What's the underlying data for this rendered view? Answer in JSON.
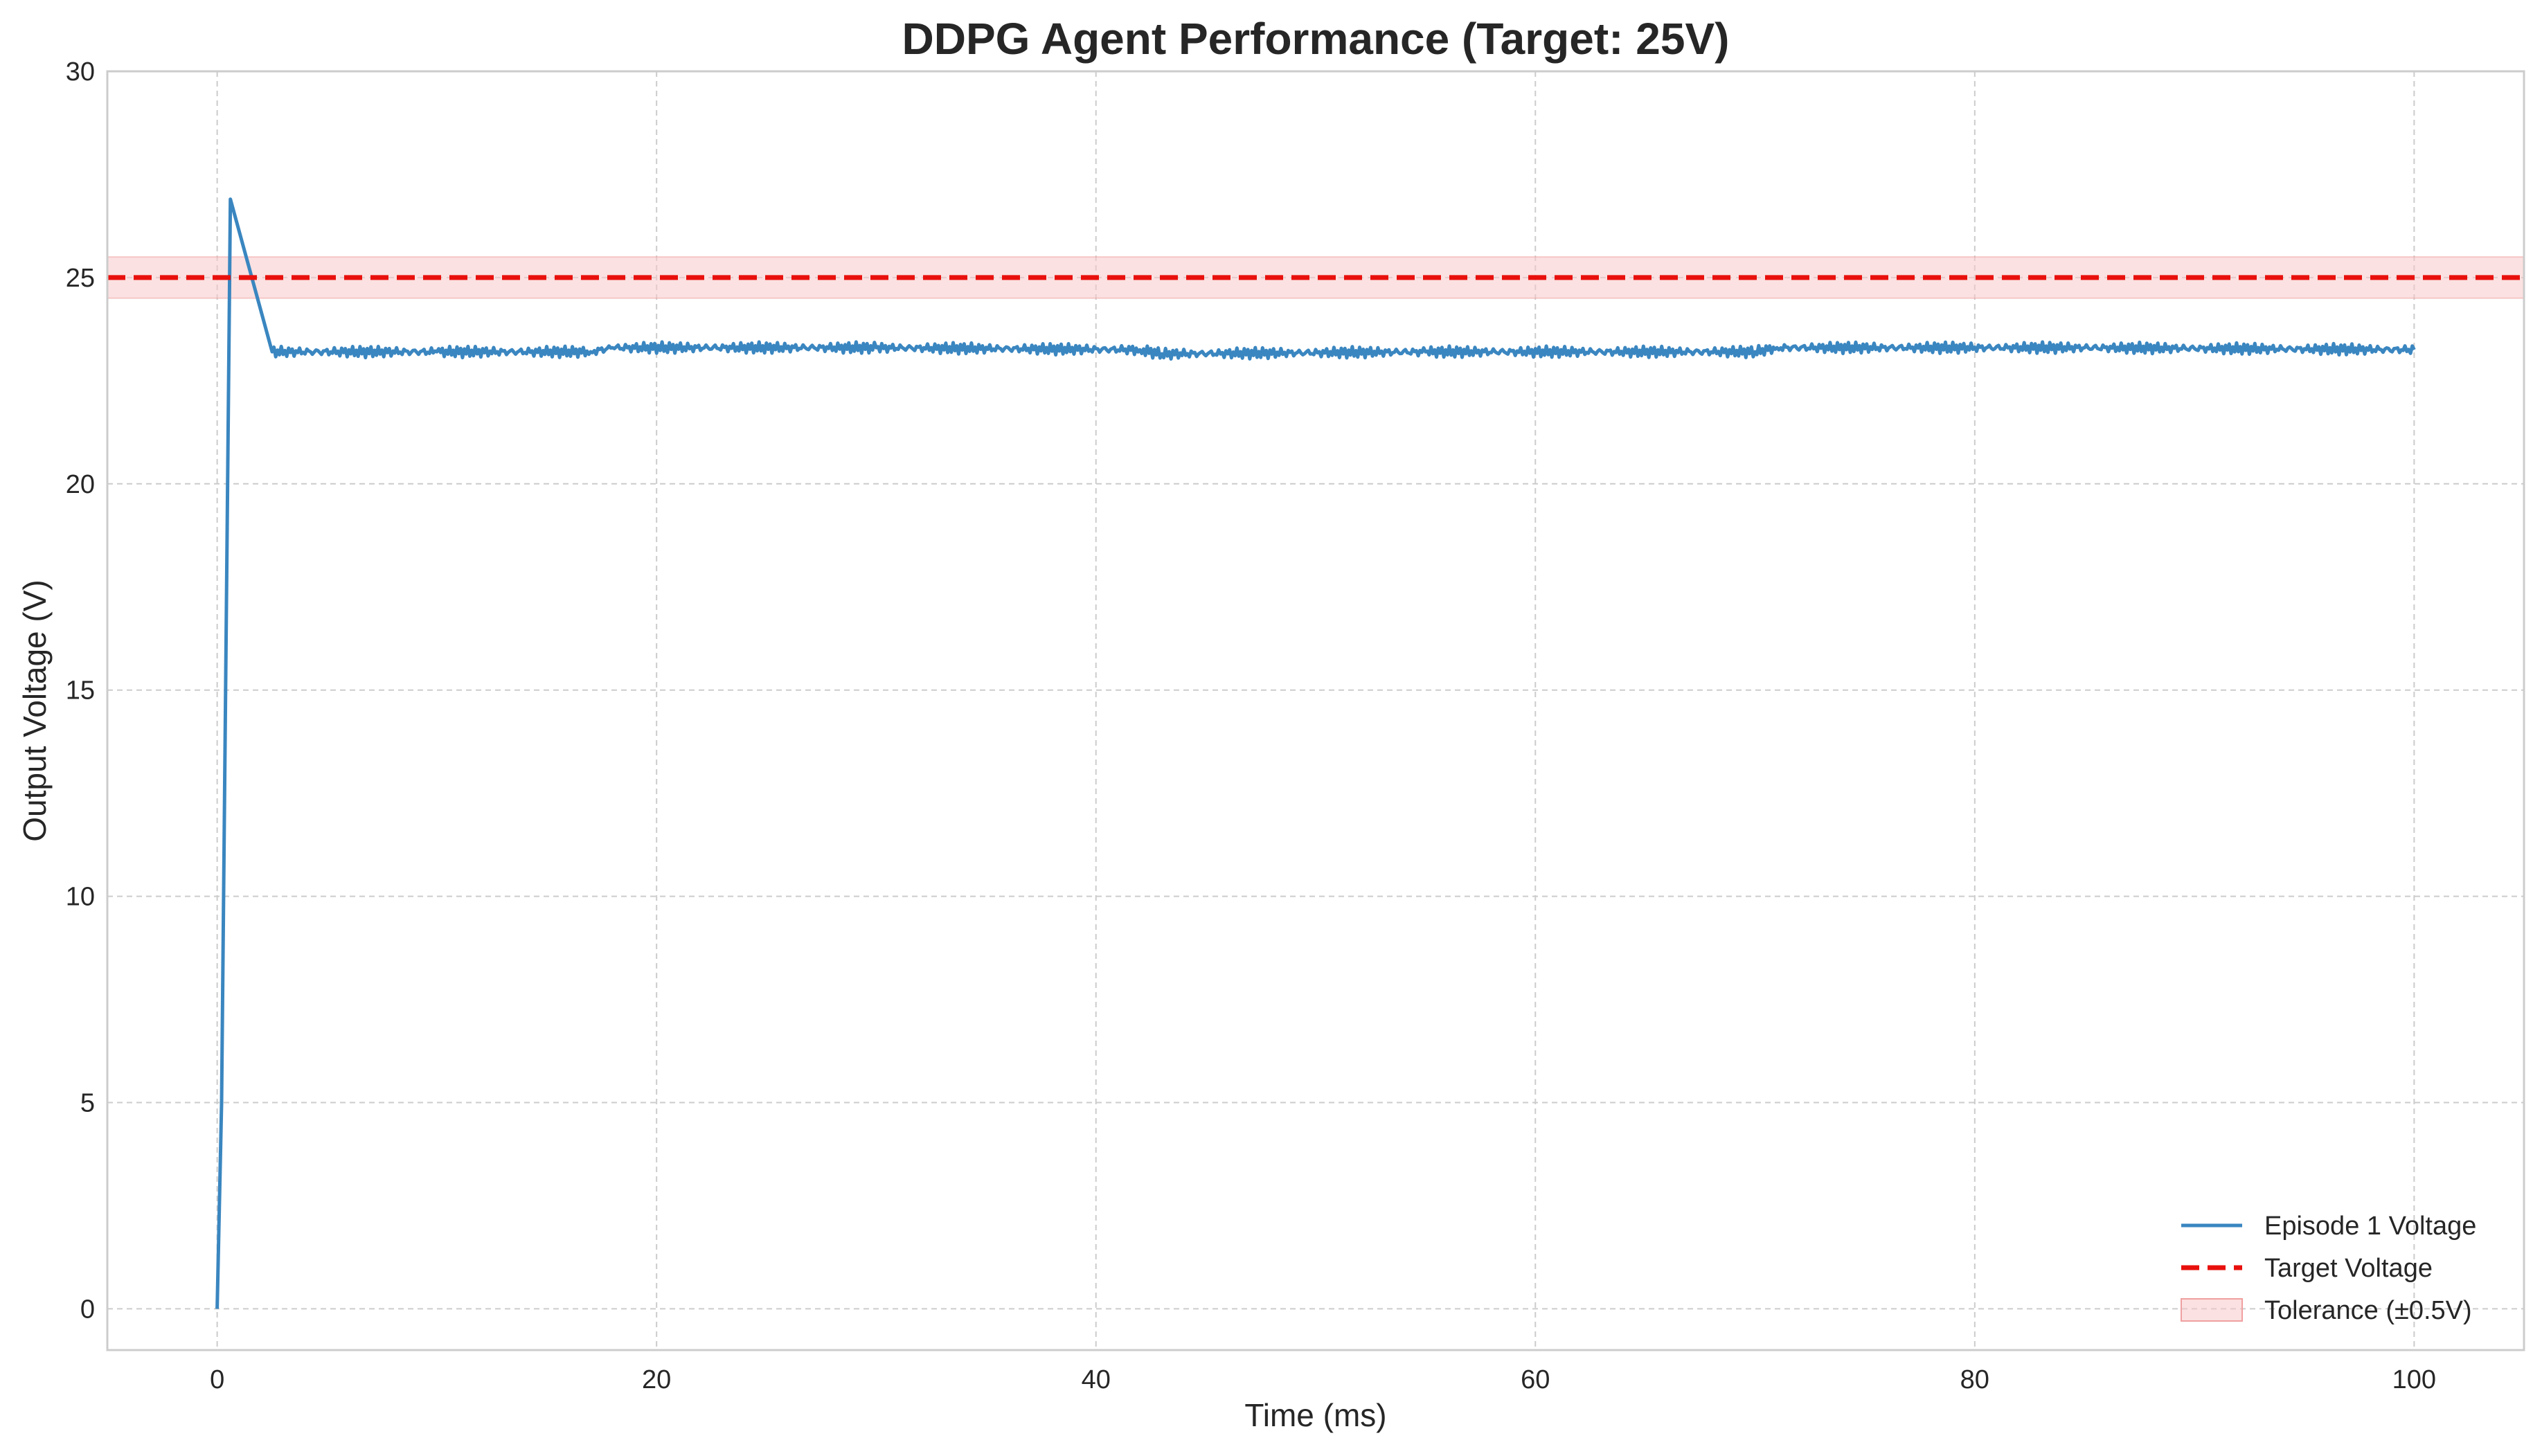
{
  "chart_data": {
    "type": "line",
    "title": "DDPG Agent Performance (Target: 25V)",
    "xlabel": "Time (ms)",
    "ylabel": "Output Voltage (V)",
    "xlim": [
      -5,
      105
    ],
    "ylim": [
      -1,
      30
    ],
    "xticks": [
      0,
      20,
      40,
      60,
      80,
      100
    ],
    "yticks": [
      0,
      5,
      10,
      15,
      20,
      25,
      30
    ],
    "grid": true,
    "legend_position": "bottom-right",
    "series": [
      {
        "name": "Episode 1 Voltage",
        "style": "solid",
        "color": "#3a86c0",
        "x": [
          0,
          0.2,
          0.6,
          2.5,
          10,
          17,
          18,
          30,
          42,
          43,
          55,
          70,
          71,
          85,
          100
        ],
        "y": [
          0,
          5,
          26.9,
          23.2,
          23.2,
          23.2,
          23.3,
          23.3,
          23.25,
          23.15,
          23.2,
          23.2,
          23.3,
          23.3,
          23.25
        ]
      },
      {
        "name": "Target Voltage",
        "style": "dashed",
        "color": "#e8100c",
        "x": [
          -5,
          105
        ],
        "y": [
          25,
          25
        ]
      }
    ],
    "bands": [
      {
        "name": "Tolerance (±0.5V)",
        "color": "#f8c9c9",
        "y_low": 24.5,
        "y_high": 25.5,
        "x": [
          -5,
          105
        ]
      }
    ]
  }
}
